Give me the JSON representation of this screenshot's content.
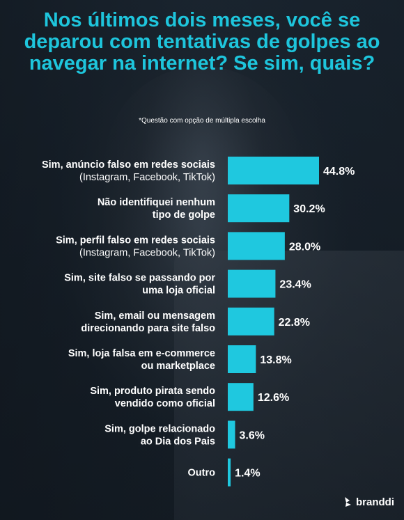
{
  "title": "Nos últimos dois meses, você se deparou com tentativas de golpes ao navegar na internet? Se sim, quais?",
  "note": "*Questão com opção de múltipla escolha",
  "brand": "branddi",
  "colors": {
    "accent": "#1ec5dc",
    "bar": "#1fc8df",
    "text": "#ffffff"
  },
  "chart_data": {
    "type": "bar",
    "orientation": "horizontal",
    "title": "Nos últimos dois meses, você se deparou com tentativas de golpes ao navegar na internet? Se sim, quais?",
    "xlabel": "",
    "ylabel": "",
    "grid": false,
    "legend": "none",
    "categories": [
      {
        "bold": "Sim, anúncio falso em redes sociais",
        "sub": "(Instagram, Facebook, TikTok)"
      },
      {
        "bold": "Não identifiquei nenhum",
        "bold2": "tipo de golpe"
      },
      {
        "bold": "Sim, perfil falso em redes sociais",
        "sub": "(Instagram, Facebook, TikTok)"
      },
      {
        "bold": "Sim, site falso se passando por",
        "bold2": "uma loja oficial"
      },
      {
        "bold": "Sim, email ou mensagem",
        "bold2": "direcionando para site falso"
      },
      {
        "bold": "Sim, loja falsa em e-commerce",
        "bold2": "ou marketplace"
      },
      {
        "bold": "Sim, produto pirata sendo",
        "bold2": "vendido como oficial"
      },
      {
        "bold": "Sim, golpe relacionado",
        "bold2": "ao Dia dos Pais"
      },
      {
        "bold": "Outro"
      }
    ],
    "values": [
      44.8,
      30.2,
      28.0,
      23.4,
      22.8,
      13.8,
      12.6,
      3.6,
      1.4
    ],
    "value_labels": [
      "44.8%",
      "30.2%",
      "28.0%",
      "23.4%",
      "22.8%",
      "13.8%",
      "12.6%",
      "3.6%",
      "1.4%"
    ],
    "unit": "%",
    "xlim": [
      0,
      44.8
    ]
  }
}
